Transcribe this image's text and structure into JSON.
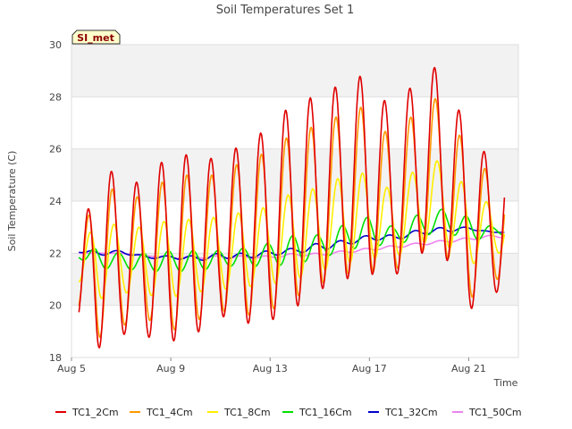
{
  "chart_data": {
    "type": "line",
    "title": "Soil Temperatures Set 1",
    "xlabel": "Time",
    "ylabel": "Soil Temperature (C)",
    "badge": "SI_met",
    "ylim": [
      18,
      30
    ],
    "xlim": [
      "Aug 5",
      "Aug 23"
    ],
    "x_ticks": [
      "Aug 5",
      "Aug 9",
      "Aug 13",
      "Aug 17",
      "Aug 21"
    ],
    "y_ticks": [
      18,
      20,
      22,
      24,
      26,
      28,
      30
    ],
    "grid": "horizontal bands",
    "legend_position": "bottom",
    "sampling": "daily minimum and maximum, Aug 5 to Aug 22",
    "x": [
      "Aug 5",
      "Aug 6",
      "Aug 7",
      "Aug 8",
      "Aug 9",
      "Aug 10",
      "Aug 11",
      "Aug 12",
      "Aug 13",
      "Aug 14",
      "Aug 15",
      "Aug 16",
      "Aug 17",
      "Aug 18",
      "Aug 19",
      "Aug 20",
      "Aug 21",
      "Aug 22"
    ],
    "series": [
      {
        "name": "TC1_2Cm",
        "color": "#e00000",
        "daily_min": [
          19.4,
          18.3,
          18.9,
          18.8,
          18.6,
          18.9,
          19.6,
          19.3,
          19.4,
          19.9,
          20.6,
          21.0,
          21.2,
          21.1,
          22.0,
          22.0,
          19.8,
          20.5
        ],
        "daily_max": [
          19.4,
          26.0,
          24.6,
          24.8,
          25.9,
          25.7,
          25.6,
          26.3,
          26.8,
          27.9,
          28.0,
          28.6,
          28.9,
          27.2,
          29.0,
          29.2,
          26.4,
          25.6
        ]
      },
      {
        "name": "TC1_4Cm",
        "color": "#ff9900",
        "daily_min": [
          20.0,
          18.7,
          19.2,
          19.5,
          19.0,
          19.4,
          19.8,
          19.6,
          19.8,
          20.3,
          20.8,
          21.2,
          21.3,
          21.3,
          22.1,
          22.1,
          20.2,
          21.0
        ],
        "daily_max": [
          20.0,
          25.1,
          24.1,
          24.2,
          25.0,
          25.0,
          25.0,
          25.6,
          25.9,
          26.7,
          26.9,
          27.4,
          27.7,
          26.1,
          27.8,
          28.0,
          25.7,
          25.0
        ]
      },
      {
        "name": "TC1_8Cm",
        "color": "#ffee00",
        "daily_min": [
          21.1,
          20.2,
          20.5,
          20.4,
          20.3,
          20.5,
          20.6,
          20.7,
          20.8,
          21.0,
          21.3,
          21.6,
          21.8,
          21.8,
          22.4,
          22.4,
          21.5,
          22.0
        ],
        "daily_max": [
          21.1,
          23.4,
          23.0,
          23.0,
          23.3,
          23.3,
          23.4,
          23.6,
          23.8,
          24.4,
          24.5,
          25.0,
          25.1,
          24.3,
          25.4,
          25.6,
          24.4,
          23.8
        ]
      },
      {
        "name": "TC1_16Cm",
        "color": "#00e000",
        "daily_min": [
          22.0,
          21.4,
          21.4,
          21.3,
          21.3,
          21.3,
          21.5,
          21.5,
          21.5,
          21.6,
          21.8,
          22.1,
          22.3,
          22.3,
          22.6,
          22.9,
          22.4,
          22.7
        ],
        "daily_max": [
          22.0,
          22.2,
          22.0,
          22.0,
          22.1,
          22.1,
          22.1,
          22.2,
          22.4,
          22.7,
          22.7,
          23.1,
          23.4,
          23.0,
          23.5,
          23.7,
          23.4,
          23.0
        ]
      },
      {
        "name": "TC1_32Cm",
        "color": "#0000cc",
        "daily_min": [
          22.1,
          21.9,
          22.0,
          21.8,
          21.8,
          21.7,
          21.8,
          21.8,
          21.9,
          22.0,
          22.1,
          22.3,
          22.5,
          22.5,
          22.7,
          22.8,
          22.9,
          22.8
        ],
        "daily_max": [
          22.1,
          22.1,
          22.1,
          21.9,
          21.9,
          21.9,
          22.0,
          22.0,
          22.1,
          22.2,
          22.4,
          22.5,
          22.7,
          22.7,
          22.9,
          23.0,
          23.0,
          22.8
        ]
      },
      {
        "name": "TC1_50Cm",
        "color": "#ee82ee",
        "daily_min": [
          22.0,
          22.0,
          22.0,
          21.9,
          21.8,
          21.8,
          21.8,
          21.8,
          21.8,
          21.9,
          21.9,
          22.0,
          22.1,
          22.2,
          22.3,
          22.4,
          22.5,
          22.6
        ],
        "daily_max": [
          22.0,
          22.0,
          22.0,
          21.9,
          21.9,
          21.9,
          21.9,
          21.9,
          21.9,
          22.0,
          22.0,
          22.1,
          22.2,
          22.3,
          22.4,
          22.5,
          22.6,
          22.7
        ]
      }
    ]
  }
}
